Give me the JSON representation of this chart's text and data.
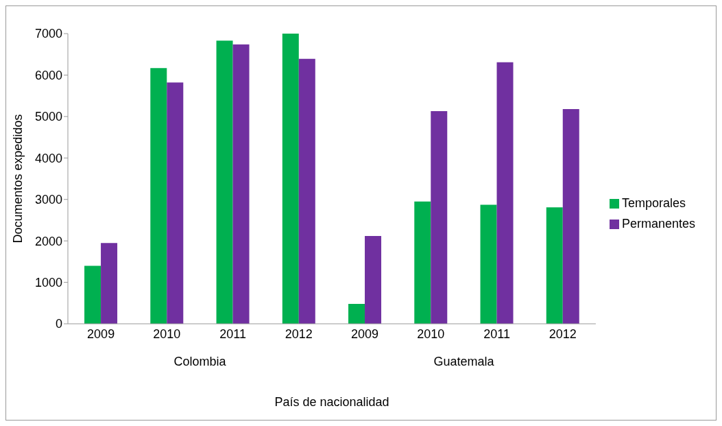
{
  "chart_data": {
    "type": "bar",
    "xlabel": "País de nacionalidad",
    "ylabel": "Documentos expedidos",
    "categories": [
      "2009",
      "2010",
      "2011",
      "2012",
      "2009",
      "2010",
      "2011",
      "2012"
    ],
    "annotations": [
      "Colombia",
      "Guatemala"
    ],
    "series": [
      {
        "name": "Temporales",
        "color": "#00b050",
        "values": [
          1400,
          6170,
          6830,
          7000,
          480,
          2950,
          2870,
          2810
        ]
      },
      {
        "name": "Permanentes",
        "color": "#7030a0",
        "values": [
          1950,
          5820,
          6740,
          6390,
          2120,
          5130,
          6310,
          5180
        ]
      }
    ],
    "ylim": [
      0,
      7000
    ],
    "yticks": [
      0,
      1000,
      2000,
      3000,
      4000,
      5000,
      6000,
      7000
    ],
    "grid": false,
    "legend": "right"
  }
}
